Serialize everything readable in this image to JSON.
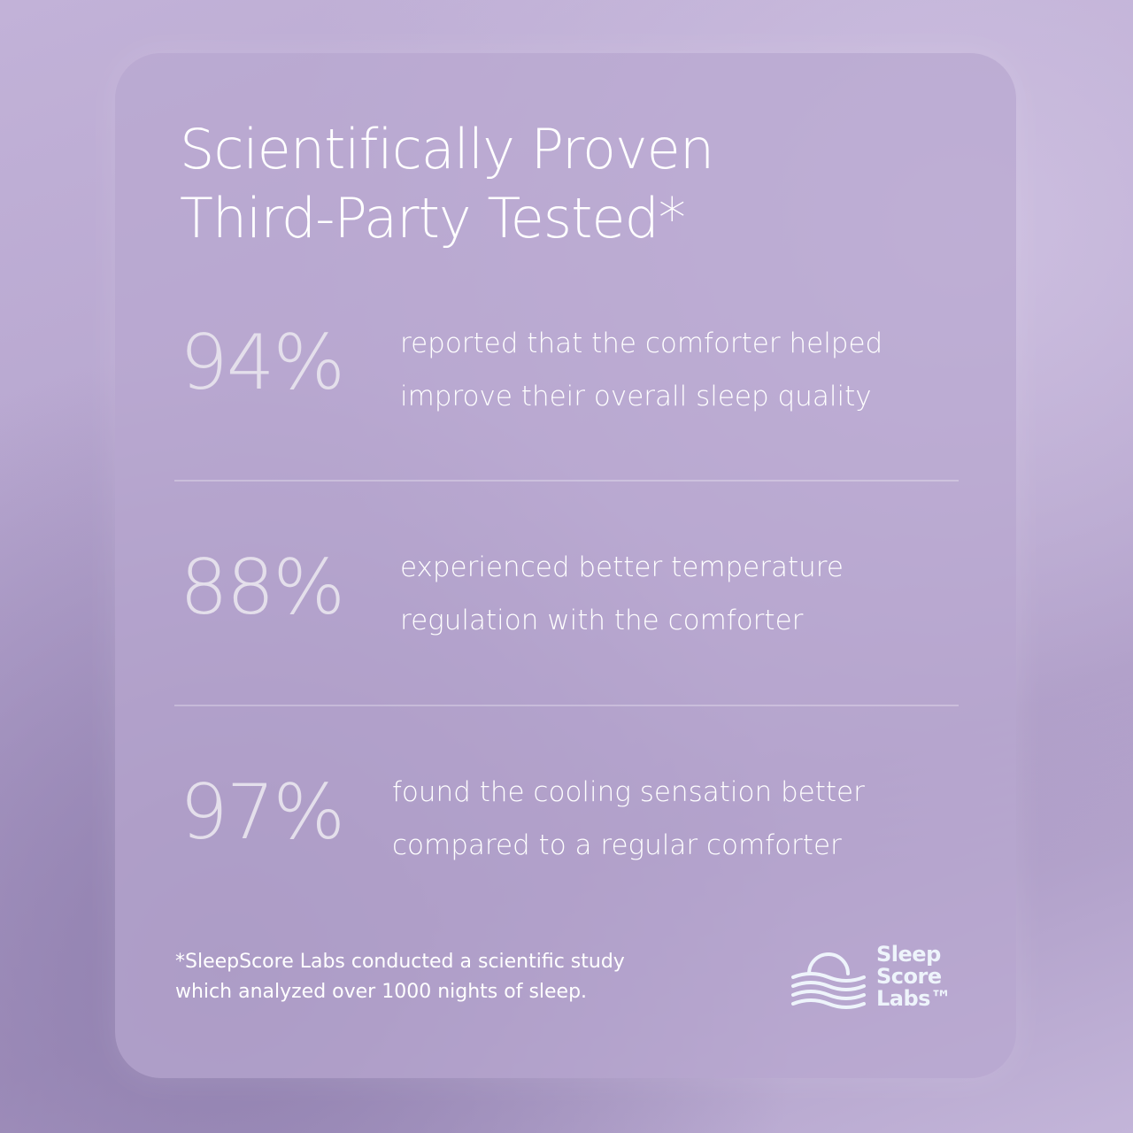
{
  "header": {
    "title_lines": [
      "Scientifically Proven",
      "Third-Party Tested*"
    ]
  },
  "stats": [
    {
      "value": "94%",
      "description_lines": [
        "reported that the comforter helped",
        "improve their overall sleep quality"
      ]
    },
    {
      "value": "88%",
      "description_lines": [
        "experienced better temperature",
        "regulation with the comforter"
      ]
    },
    {
      "value": "97%",
      "description_lines": [
        "found the cooling sensation better",
        "compared to a regular comforter"
      ]
    }
  ],
  "footnote_lines": [
    "*SleepScore Labs conducted a scientific study",
    "which analyzed over 1000 nights of sleep."
  ],
  "logo": {
    "lines": [
      "Sleep",
      "Score",
      "Labs™"
    ]
  }
}
